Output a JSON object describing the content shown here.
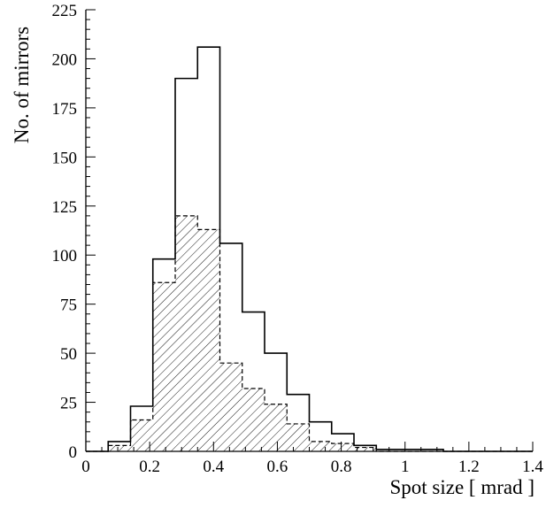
{
  "chart_data": {
    "type": "bar",
    "bar_style": "step-histogram",
    "xlabel": "Spot size [ mrad ]",
    "ylabel": "No. of mirrors",
    "xlim": [
      0,
      1.4
    ],
    "ylim": [
      0,
      225
    ],
    "bin_width": 0.07,
    "bin_edges": [
      0,
      0.07,
      0.14,
      0.21,
      0.28,
      0.35,
      0.42,
      0.49,
      0.56,
      0.63,
      0.7,
      0.77,
      0.84,
      0.91,
      0.98,
      1.05,
      1.12,
      1.19,
      1.26,
      1.33,
      1.4
    ],
    "x_ticks": [
      "0",
      "0.2",
      "0.4",
      "0.6",
      "0.8",
      "1",
      "1.2",
      "1.4"
    ],
    "y_ticks": [
      "0",
      "25",
      "50",
      "75",
      "100",
      "125",
      "150",
      "175",
      "200",
      "225"
    ],
    "series": [
      {
        "style": "solid outline",
        "values": [
          0,
          5,
          23,
          98,
          190,
          206,
          106,
          71,
          50,
          29,
          15,
          9,
          3,
          1,
          1,
          1,
          0,
          0,
          0,
          0
        ]
      },
      {
        "style": "dashed outline, diagonal hatch fill",
        "values": [
          0,
          3,
          16,
          86,
          120,
          113,
          45,
          32,
          24,
          14,
          5,
          4,
          2,
          0,
          0,
          0,
          0,
          0,
          0,
          0
        ]
      }
    ],
    "grid": false,
    "legend": "none",
    "colors": {
      "line": "#000000",
      "background": "#ffffff"
    }
  }
}
